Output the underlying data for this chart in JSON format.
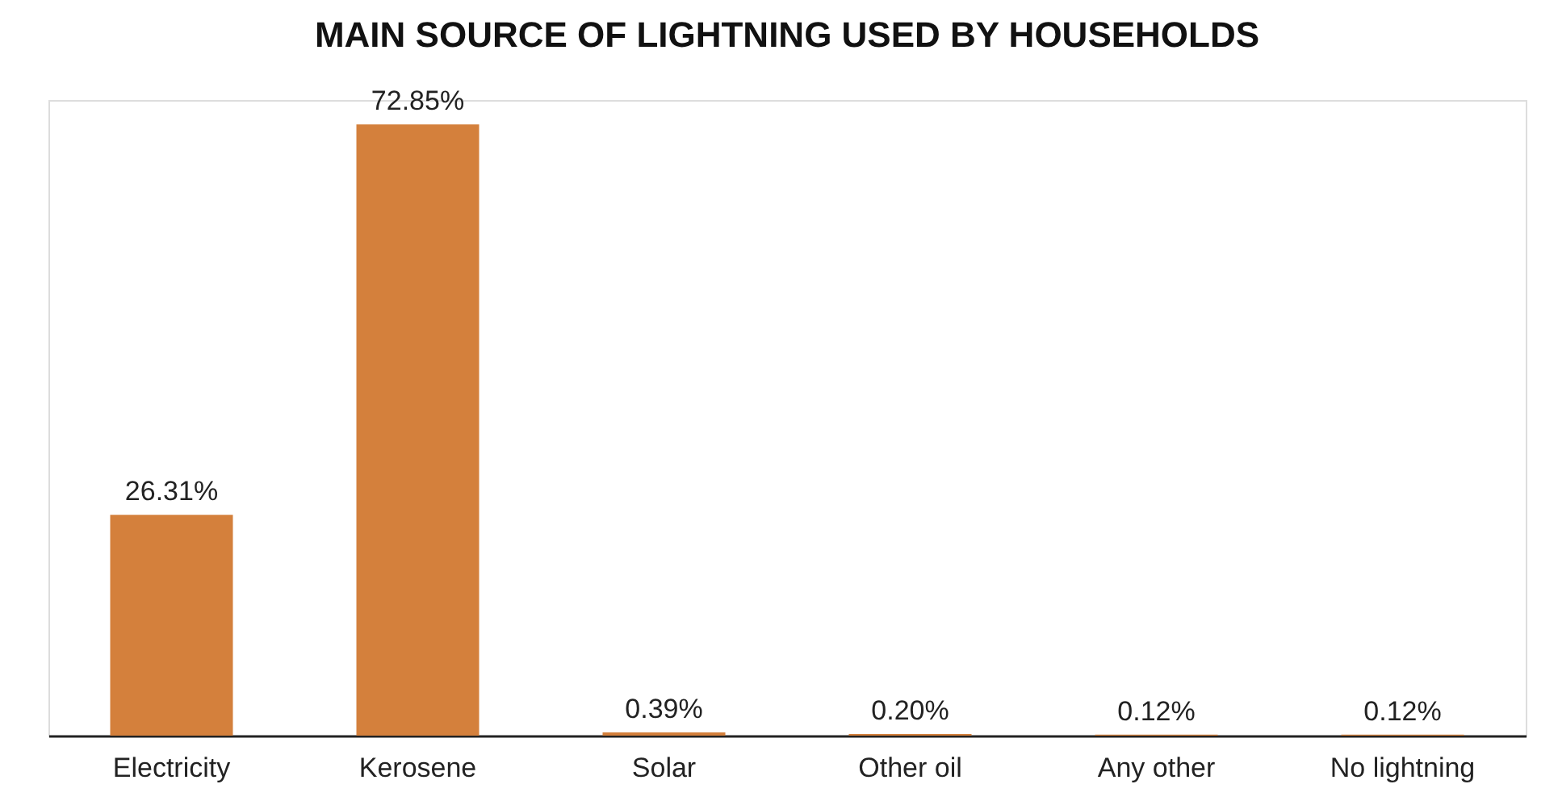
{
  "chart_data": {
    "type": "bar",
    "title": "MAIN SOURCE OF LIGHTNING USED BY HOUSEHOLDS",
    "categories": [
      "Electricity",
      "Kerosene",
      "Solar",
      "Other oil",
      "Any other",
      "No lightning"
    ],
    "values": [
      26.31,
      72.85,
      0.39,
      0.2,
      0.12,
      0.12
    ],
    "value_labels": [
      "26.31%",
      "72.85%",
      "0.39%",
      "0.20%",
      "0.12%",
      "0.12%"
    ],
    "color": "#d4803c",
    "grid": false
  }
}
